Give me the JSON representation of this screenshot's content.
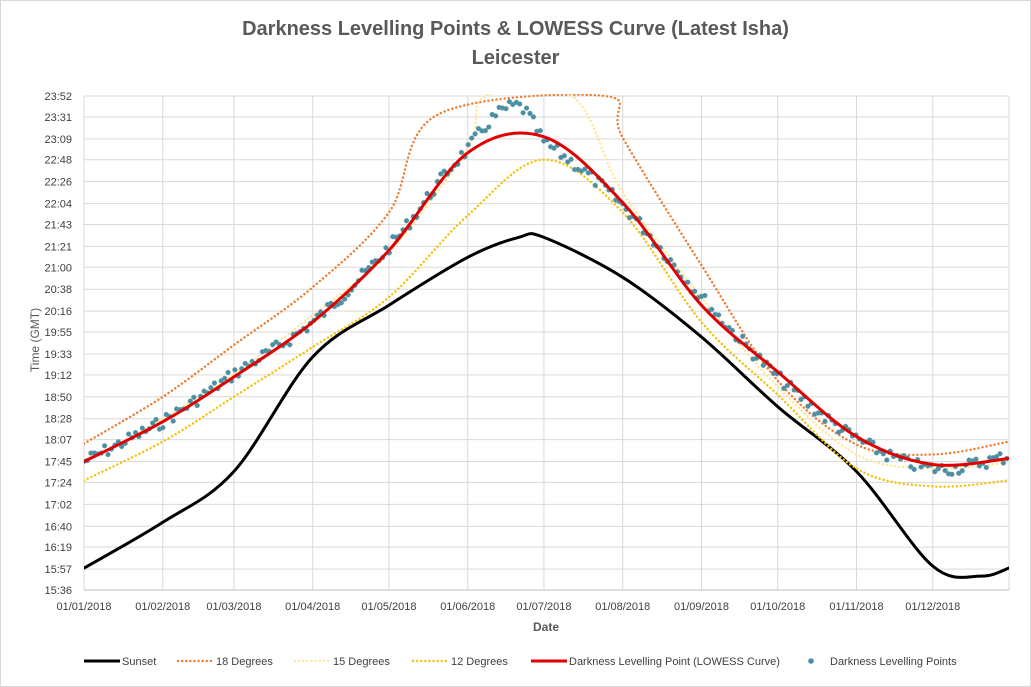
{
  "chart_data": {
    "type": "line",
    "title": "Darkness Levelling Points & LOWESS Curve (Latest Isha)",
    "subtitle": "Leicester",
    "xlabel": "Date",
    "ylabel": "Time (GMT)",
    "x_tick_labels": [
      "01/01/2018",
      "01/02/2018",
      "01/03/2018",
      "01/04/2018",
      "01/05/2018",
      "01/06/2018",
      "01/07/2018",
      "01/08/2018",
      "01/09/2018",
      "01/10/2018",
      "01/11/2018",
      "01/12/2018"
    ],
    "y_tick_labels": [
      "15:36",
      "15:57",
      "16:19",
      "16:40",
      "17:02",
      "17:24",
      "17:45",
      "18:07",
      "18:28",
      "18:50",
      "19:12",
      "19:33",
      "19:55",
      "20:16",
      "20:38",
      "21:00",
      "21:21",
      "21:43",
      "22:04",
      "22:26",
      "22:48",
      "23:09",
      "23:31",
      "23:52"
    ],
    "xlim": [
      "01/01/2018",
      "31/12/2018"
    ],
    "ylim": [
      "15:36",
      "23:52"
    ],
    "grid": "vertical and horizontal",
    "legend_position": "bottom",
    "series": [
      {
        "name": "Sunset",
        "style": "solid",
        "color": "#000000",
        "x": [
          "01/01/2018",
          "01/02/2018",
          "01/03/2018",
          "01/04/2018",
          "01/05/2018",
          "01/06/2018",
          "21/06/2018",
          "01/07/2018",
          "01/08/2018",
          "01/09/2018",
          "01/10/2018",
          "01/11/2018",
          "01/12/2018",
          "20/12/2018",
          "31/12/2018"
        ],
        "y": [
          "15:58",
          "16:44",
          "17:35",
          "19:30",
          "20:22",
          "21:10",
          "21:30",
          "21:30",
          "20:50",
          "19:50",
          "18:40",
          "17:35",
          "16:00",
          "15:50",
          "15:58"
        ]
      },
      {
        "name": "18 Degrees",
        "style": "dotted",
        "color": "#ed7d31",
        "x": [
          "01/01/2018",
          "01/02/2018",
          "01/03/2018",
          "01/04/2018",
          "01/05/2018",
          "20/05/2018",
          "25/07/2018",
          "01/08/2018",
          "01/09/2018",
          "01/10/2018",
          "01/11/2018",
          "01/12/2018",
          "31/12/2018"
        ],
        "y": [
          "18:03",
          "18:50",
          "19:42",
          "20:40",
          "21:55",
          "23:33",
          "23:52",
          "23:10",
          "21:02",
          "19:06",
          "18:02",
          "17:52",
          "18:05"
        ]
      },
      {
        "name": "15 Degrees",
        "style": "dotted",
        "color": "#ffe699",
        "x": [
          "01/01/2018",
          "01/02/2018",
          "01/03/2018",
          "01/04/2018",
          "01/05/2018",
          "01/06/2018",
          "08/06/2018",
          "12/07/2018",
          "01/08/2018",
          "01/09/2018",
          "01/10/2018",
          "01/11/2018",
          "01/12/2018",
          "31/12/2018"
        ],
        "y": [
          "17:44",
          "18:28",
          "19:13",
          "20:12",
          "21:15",
          "23:00",
          "23:52",
          "23:52",
          "22:15",
          "20:30",
          "19:00",
          "17:52",
          "17:38",
          "17:44"
        ]
      },
      {
        "name": "12 Degrees",
        "style": "dotted",
        "color": "#f4c20d",
        "x": [
          "01/01/2018",
          "01/02/2018",
          "01/03/2018",
          "01/04/2018",
          "01/05/2018",
          "01/06/2018",
          "01/07/2018",
          "01/08/2018",
          "01/09/2018",
          "01/10/2018",
          "01/11/2018",
          "01/12/2018",
          "31/12/2018"
        ],
        "y": [
          "17:26",
          "18:05",
          "18:50",
          "19:40",
          "20:30",
          "21:52",
          "22:48",
          "21:55",
          "20:05",
          "18:52",
          "17:38",
          "17:20",
          "17:26"
        ]
      },
      {
        "name": "Darkness Levelling Point (LOWESS Curve)",
        "style": "solid",
        "color": "#e00000",
        "x": [
          "01/01/2018",
          "01/02/2018",
          "01/03/2018",
          "01/04/2018",
          "01/05/2018",
          "01/06/2018",
          "01/07/2018",
          "01/08/2018",
          "01/09/2018",
          "01/10/2018",
          "01/11/2018",
          "01/12/2018",
          "31/12/2018"
        ],
        "y": [
          "17:45",
          "18:25",
          "19:10",
          "20:05",
          "21:17",
          "22:55",
          "23:11",
          "22:05",
          "20:22",
          "19:15",
          "18:10",
          "17:42",
          "17:48"
        ]
      },
      {
        "name": "Darkness Levelling Points",
        "style": "marker",
        "color": "#4b8fa3",
        "x": [
          "01/01/2018",
          "01/02/2018",
          "01/03/2018",
          "01/04/2018",
          "01/05/2018",
          "01/06/2018",
          "20/06/2018",
          "01/07/2018",
          "01/08/2018",
          "01/09/2018",
          "01/10/2018",
          "01/11/2018",
          "01/12/2018",
          "31/12/2018"
        ],
        "y": [
          "17:45",
          "18:25",
          "19:13",
          "20:05",
          "21:20",
          "22:58",
          "23:42",
          "23:05",
          "22:02",
          "20:30",
          "19:10",
          "18:08",
          "17:38",
          "17:50"
        ]
      }
    ]
  },
  "legend": [
    {
      "label": "Sunset",
      "kind": "line",
      "color": "#000000"
    },
    {
      "label": "18 Degrees",
      "kind": "dotted",
      "color": "#ed7d31"
    },
    {
      "label": "15 Degrees",
      "kind": "dotted",
      "color": "#ffe699"
    },
    {
      "label": "12 Degrees",
      "kind": "dotted",
      "color": "#f4c20d"
    },
    {
      "label": "Darkness Levelling Point (LOWESS Curve)",
      "kind": "line",
      "color": "#e00000"
    },
    {
      "label": "Darkness Levelling Points",
      "kind": "marker",
      "color": "#4b8fa3"
    }
  ]
}
